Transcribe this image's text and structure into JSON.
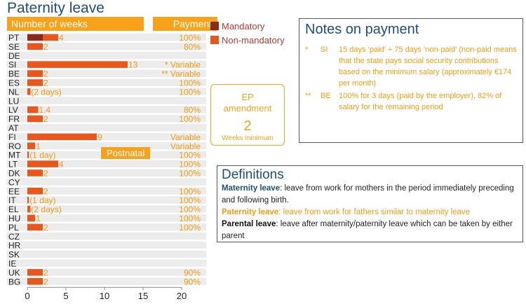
{
  "title": "Paternity leave",
  "headers": {
    "weeks": "Number of weeks",
    "payment": "Payment"
  },
  "legend": {
    "mandatory": "Mandatory",
    "non_mandatory": "Non-mandatory"
  },
  "colors": {
    "mandatory": "#8b2a1c",
    "non_mandatory": "#e9561b",
    "row_bg": "#ececec",
    "accent": "#f7a21b",
    "payment_text": "#f39c12"
  },
  "ep_box": {
    "line1": "EP",
    "line2": "amendment",
    "value": "2",
    "unit": "Weeks minimum"
  },
  "postnatal": "Postnatal",
  "notes": {
    "title": "Notes on payment",
    "items": [
      {
        "star": "*",
        "code": "SI",
        "text": "15 days ‘paid’ + 75 days ‘non-paid’ (non-paid means that the state pays social security contributions based on the minimum salary (approximately €174 per month)"
      },
      {
        "star": "**",
        "code": "BE",
        "text": "100% for 3 days (paid by the employer), 82% of salary for the remaining period"
      }
    ]
  },
  "definitions": {
    "title": "Definitions",
    "items": [
      {
        "term": "Maternity leave",
        "desc": ": leave from work for mothers in the period immediately preceding and following birth."
      },
      {
        "term": "Paternity leave",
        "desc": ": leave from work for fathers similar to maternity leave"
      },
      {
        "term": "Parental leave",
        "desc": ": leave after maternity/paternity leave which can be taken by either parent"
      }
    ]
  },
  "chart_data": {
    "type": "bar",
    "orientation": "horizontal",
    "stacked": true,
    "xlim": [
      0,
      20
    ],
    "xticks": [
      0,
      5,
      10,
      15,
      20
    ],
    "categories": [
      "PT",
      "SE",
      "DE",
      "SI",
      "BE",
      "ES",
      "NL",
      "LU",
      "LV",
      "FR",
      "AT",
      "FI",
      "RO",
      "MT",
      "LT",
      "DK",
      "CY",
      "EE",
      "IT",
      "EL",
      "HU",
      "PL",
      "CZ",
      "HR",
      "SK",
      "IE",
      "UK",
      "BG"
    ],
    "series": [
      {
        "name": "Mandatory",
        "values": [
          2,
          0,
          0,
          0,
          0,
          0,
          0,
          0,
          0,
          0,
          0,
          0,
          0,
          0,
          0,
          0,
          0,
          0,
          0,
          0,
          0,
          0,
          0,
          0,
          0,
          0,
          0,
          0
        ]
      },
      {
        "name": "Non-mandatory",
        "values": [
          2,
          2,
          0,
          13,
          2,
          2,
          0.4,
          0,
          1.4,
          2,
          0,
          9,
          1,
          0.2,
          4,
          2,
          0,
          2,
          0.2,
          0.4,
          1,
          2,
          0,
          0,
          0,
          0,
          2,
          2
        ]
      }
    ],
    "data_labels": [
      "4",
      "2",
      "",
      "13",
      "2",
      "2",
      "(2 days)",
      "",
      "1.4",
      "2",
      "",
      "9",
      "1",
      "(1 day)",
      "4",
      "2",
      "",
      "2",
      "(1 day)",
      "(2 days)",
      "1",
      "2",
      "",
      "",
      "",
      "",
      "2",
      "2"
    ],
    "payment": [
      "100%",
      "80%",
      "",
      "* Variable",
      "** Variable",
      "100%",
      "100%",
      "",
      "80%",
      "100%",
      "",
      "Variable",
      "Variable",
      "100%",
      "100%",
      "100%",
      "",
      "100%",
      "100%",
      "100%",
      "100%",
      "100%",
      "",
      "",
      "",
      "",
      "90%",
      "90%"
    ]
  }
}
